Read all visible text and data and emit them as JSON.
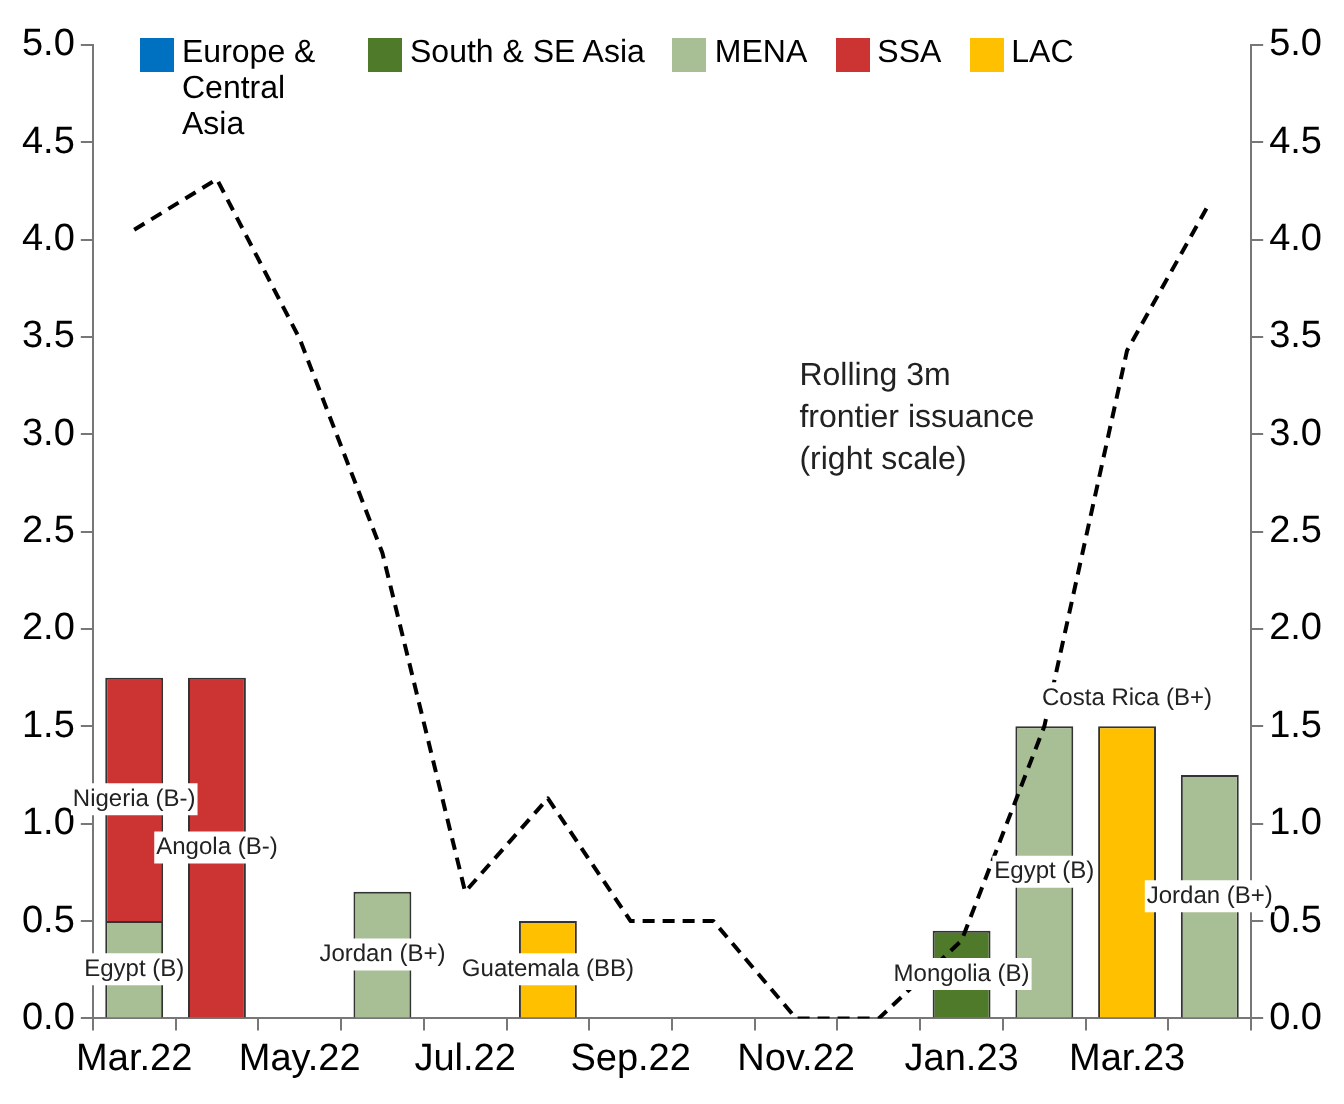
{
  "chart_data": {
    "type": "bar",
    "stacked": true,
    "categories": [
      "Mar.22",
      null,
      "May.22",
      null,
      "Jul.22",
      null,
      "Sep.22",
      null,
      "Nov.22",
      null,
      "Jan.23",
      null,
      "Mar.23",
      null
    ],
    "series": [
      {
        "name": "Europe & Central Asia",
        "color": "#0070c0",
        "values": [
          null,
          null,
          null,
          null,
          null,
          null,
          null,
          null,
          null,
          null,
          null,
          null,
          null,
          null
        ]
      },
      {
        "name": "South & SE Asia",
        "color": "#4e7a2a",
        "values": [
          null,
          null,
          null,
          null,
          null,
          null,
          null,
          null,
          null,
          null,
          0.45,
          null,
          null,
          null
        ],
        "value_labels": [
          null,
          null,
          null,
          null,
          null,
          null,
          null,
          null,
          null,
          null,
          "Mongolia (B)",
          null,
          null,
          null
        ]
      },
      {
        "name": "MENA",
        "color": "#a8bf96",
        "values": [
          0.5,
          null,
          null,
          0.65,
          null,
          null,
          null,
          null,
          null,
          null,
          null,
          1.5,
          null,
          1.25
        ],
        "value_labels": [
          "Egypt (B)",
          null,
          null,
          "Jordan (B+)",
          null,
          null,
          null,
          null,
          null,
          null,
          null,
          "Egypt (B)",
          null,
          "Jordan (B+)"
        ]
      },
      {
        "name": "SSA",
        "color": "#cc3333",
        "values": [
          1.25,
          1.75,
          null,
          null,
          null,
          null,
          null,
          null,
          null,
          null,
          null,
          null,
          null,
          null
        ],
        "value_labels": [
          "Nigeria (B-)",
          "Angola (B-)",
          null,
          null,
          null,
          null,
          null,
          null,
          null,
          null,
          null,
          null,
          null,
          null
        ]
      },
      {
        "name": "LAC",
        "color": "#ffc000",
        "values": [
          null,
          null,
          null,
          null,
          null,
          0.5,
          null,
          null,
          null,
          null,
          null,
          null,
          1.5,
          null
        ],
        "value_labels": [
          null,
          null,
          null,
          null,
          null,
          "Guatemala (BB)",
          null,
          null,
          null,
          null,
          null,
          null,
          "Costa Rica (B+)",
          null
        ]
      },
      {
        "type": "line",
        "axis": "y2",
        "color": "#000000",
        "line_style": "dashed",
        "values": [
          4.05,
          4.31,
          3.49,
          2.39,
          0.65,
          1.13,
          0.5,
          0.5,
          0.0,
          0.0,
          0.4,
          1.5,
          3.43,
          4.19
        ]
      }
    ],
    "ylim": [
      0,
      5
    ],
    "yticks": [
      {
        "value": 0,
        "label": "0.0"
      },
      {
        "value": 0.5,
        "label": "0.5"
      },
      {
        "value": 1,
        "label": "1.0"
      },
      {
        "value": 1.5,
        "label": "1.5"
      },
      {
        "value": 2,
        "label": "2.0"
      },
      {
        "value": 2.5,
        "label": "2.5"
      },
      {
        "value": 3,
        "label": "3.0"
      },
      {
        "value": 3.5,
        "label": "3.5"
      },
      {
        "value": 4,
        "label": "4.0"
      },
      {
        "value": 4.5,
        "label": "4.5"
      },
      {
        "value": 5,
        "label": "5.0"
      }
    ],
    "y2lim": [
      0,
      5
    ],
    "y2ticks": [
      {
        "value": 0,
        "label": "0.0"
      },
      {
        "value": 0.5,
        "label": "0.5"
      },
      {
        "value": 1,
        "label": "1.0"
      },
      {
        "value": 1.5,
        "label": "1.5"
      },
      {
        "value": 2,
        "label": "2.0"
      },
      {
        "value": 2.5,
        "label": "2.5"
      },
      {
        "value": 3,
        "label": "3.0"
      },
      {
        "value": 3.5,
        "label": "3.5"
      },
      {
        "value": 4,
        "label": "4.0"
      },
      {
        "value": 4.5,
        "label": "4.5"
      },
      {
        "value": 5,
        "label": "5.0"
      }
    ],
    "annotations": [
      "Rolling 3m\nfrontier issuance\n(right scale)"
    ],
    "grid": false,
    "legend": "top left"
  }
}
